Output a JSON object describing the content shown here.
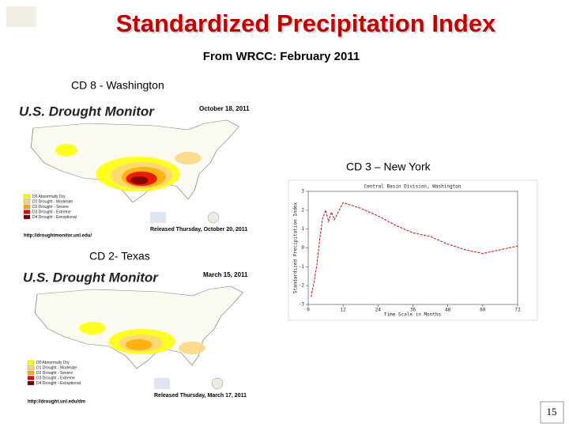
{
  "slide": {
    "title": "Standardized Precipitation Index",
    "subtitle": "From WRCC: February 2011",
    "page_number": "15",
    "labels": [
      "CD 8 - Washington",
      "CD 3 – New York",
      "CD 2- Texas"
    ]
  },
  "maps": [
    {
      "title": "U.S. Drought Monitor",
      "date": "October 18, 2011",
      "legend": [
        "D0 Abnormally Dry",
        "D1 Drought - Moderate",
        "D2 Drought - Severe",
        "D3 Drought - Extreme",
        "D4 Drought - Exceptional"
      ],
      "released": "Released Thursday, October 20, 2011",
      "url": "http://droughtmonitor.unl.edu/"
    },
    {
      "title": "U.S. Drought Monitor",
      "date": "March 15, 2011",
      "legend": [
        "D0 Abnormally Dry",
        "D1 Drought - Moderate",
        "D2 Drought - Severe",
        "D3 Drought - Extreme",
        "D4 Drought - Exceptional"
      ],
      "released": "Released Thursday, March 17, 2011",
      "url": "http://drought.unl.edu/dm"
    }
  ],
  "spi_chart": {
    "type": "line",
    "title": "Central Basin Division, Washington",
    "xlabel": "Time Scale in Months",
    "ylabel": "Standardized Precipitation Index",
    "x": [
      1,
      2,
      3,
      4,
      5,
      6,
      7,
      8,
      9,
      10,
      12,
      18,
      24,
      30,
      36,
      42,
      48,
      54,
      60,
      66,
      72
    ],
    "values": [
      -2.6,
      -1.8,
      -0.9,
      0.5,
      1.6,
      2.0,
      1.4,
      1.9,
      1.5,
      1.8,
      2.4,
      2.1,
      1.7,
      1.2,
      0.8,
      0.6,
      0.2,
      -0.1,
      -0.3,
      -0.1,
      0.1
    ],
    "color": "#cc0000",
    "xlim": [
      0,
      72
    ],
    "ylim": [
      -3,
      3
    ],
    "xticks": [
      0,
      12,
      24,
      36,
      48,
      60,
      72
    ],
    "yticks": [
      -3,
      -2,
      -1,
      0,
      1,
      2,
      3
    ]
  }
}
